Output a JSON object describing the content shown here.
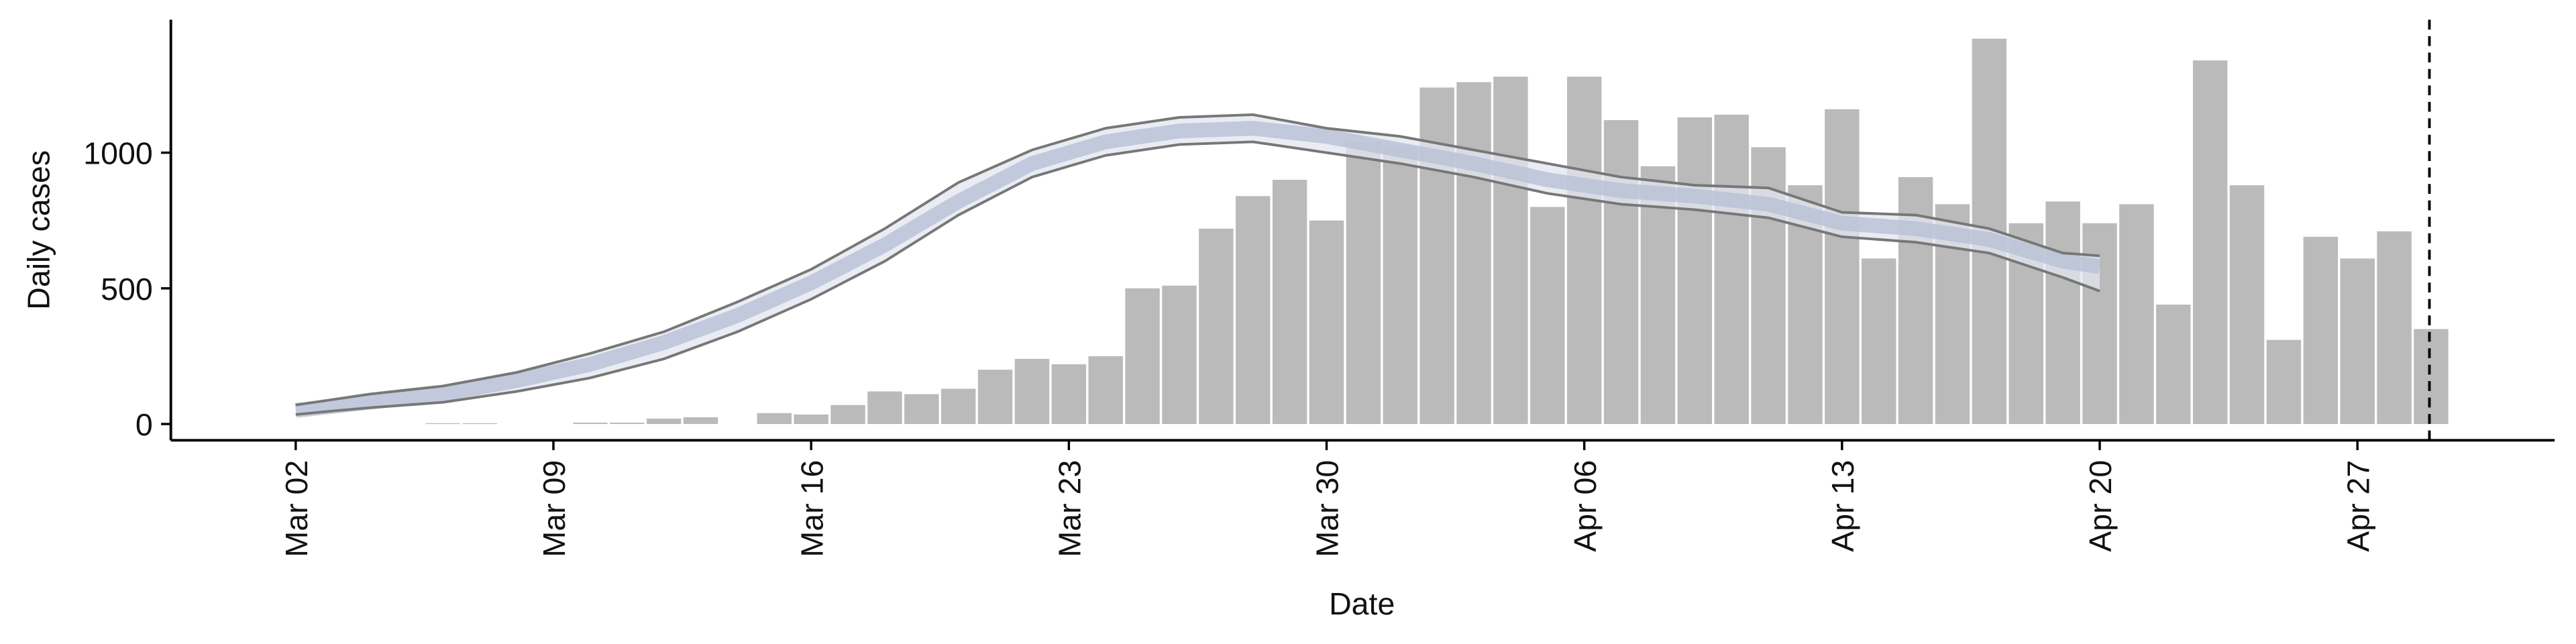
{
  "chart_data": {
    "type": "bar",
    "xlabel": "Date",
    "ylabel": "Daily cases",
    "categories": [
      "Mar 02",
      null,
      null,
      null,
      null,
      null,
      null,
      "Mar 09",
      null,
      null,
      null,
      null,
      null,
      null,
      "Mar 16",
      null,
      null,
      null,
      null,
      null,
      null,
      "Mar 23",
      null,
      null,
      null,
      null,
      null,
      null,
      "Mar 30",
      null,
      null,
      null,
      null,
      null,
      null,
      "Apr 06",
      null,
      null,
      null,
      null,
      null,
      null,
      "Apr 13",
      null,
      null,
      null,
      null,
      null,
      null,
      "Apr 20",
      null,
      null,
      null,
      null,
      null,
      null,
      "Apr 27",
      null,
      null
    ],
    "series": [
      {
        "color": "#bababa",
        "values": [
          0,
          0,
          0,
          0,
          3,
          3,
          0,
          0,
          5,
          5,
          20,
          25,
          0,
          40,
          35,
          70,
          120,
          110,
          130,
          200,
          240,
          220,
          250,
          500,
          510,
          720,
          840,
          900,
          750,
          1040,
          1020,
          1240,
          1260,
          1280,
          800,
          1280,
          1120,
          950,
          1130,
          1140,
          1020,
          880,
          1160,
          610,
          910,
          810,
          1420,
          740,
          820,
          740,
          810,
          440,
          1340,
          880,
          310,
          690,
          610,
          710,
          350
        ]
      }
    ],
    "band": {
      "line_color": "#777777",
      "fill": "#e3e6ef",
      "median_color": "#b8c0d6",
      "median": [
        50,
        65,
        80,
        95,
        110,
        135,
        160,
        190,
        220,
        260,
        300,
        350,
        400,
        460,
        520,
        590,
        660,
        740,
        820,
        890,
        960,
        1000,
        1040,
        1060,
        1080,
        1085,
        1090,
        1075,
        1060,
        1035,
        1010,
        985,
        960,
        930,
        900,
        880,
        860,
        850,
        840,
        825,
        810,
        775,
        740,
        730,
        720,
        700,
        680,
        640,
        600,
        580,
        null,
        null,
        null,
        null,
        null,
        null,
        null,
        null,
        null
      ],
      "upper": [
        70,
        90,
        110,
        125,
        140,
        165,
        190,
        225,
        260,
        300,
        340,
        395,
        450,
        510,
        570,
        645,
        720,
        805,
        890,
        950,
        1010,
        1050,
        1090,
        1110,
        1130,
        1135,
        1140,
        1115,
        1090,
        1075,
        1060,
        1035,
        1010,
        985,
        960,
        935,
        910,
        895,
        880,
        875,
        870,
        825,
        780,
        775,
        770,
        745,
        720,
        675,
        630,
        620,
        null,
        null,
        null,
        null,
        null,
        null,
        null,
        null,
        null
      ],
      "lower": [
        35,
        48,
        60,
        70,
        80,
        100,
        120,
        145,
        170,
        205,
        240,
        290,
        340,
        400,
        460,
        530,
        600,
        685,
        770,
        840,
        910,
        950,
        990,
        1010,
        1030,
        1035,
        1040,
        1020,
        1000,
        980,
        960,
        935,
        910,
        880,
        850,
        830,
        810,
        800,
        790,
        775,
        760,
        725,
        690,
        680,
        670,
        650,
        630,
        585,
        540,
        490,
        null,
        null,
        null,
        null,
        null,
        null,
        null,
        null,
        null
      ]
    },
    "ylim": [
      -60,
      1490
    ],
    "yticks": [
      0,
      500,
      1000
    ],
    "grid": false
  }
}
